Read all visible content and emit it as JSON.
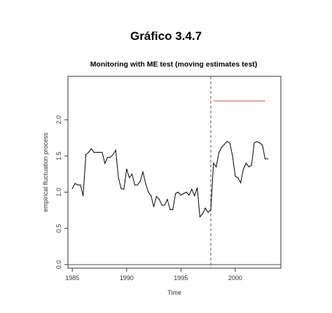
{
  "page": {
    "title": "Gráfico 3.4.7"
  },
  "chart_data": {
    "type": "line",
    "title": "Monitoring with ME test (moving estimates test)",
    "xlabel": "Time",
    "ylabel": "empirical fluctuation process",
    "xlim": [
      1984.6,
      2004.2
    ],
    "ylim": [
      -0.05,
      2.6
    ],
    "x_ticks": [
      1985,
      1990,
      1995,
      2000
    ],
    "x_tick_labels": [
      "1985",
      "1990",
      "1995",
      "2000"
    ],
    "y_ticks": [
      0.0,
      0.5,
      1.0,
      1.5,
      2.0
    ],
    "y_tick_labels": [
      "0.0",
      "0.5",
      "1.0",
      "1.5",
      "2.0"
    ],
    "grid": false,
    "reference_lines": {
      "horizontal_y": 0.0,
      "vertical_dashed_x": 1997.75,
      "boundary": {
        "x_start": 1998.0,
        "x_end": 2002.75,
        "y": 2.26,
        "color": "#e07070"
      }
    },
    "colors": {
      "series": "#000000",
      "boundary": "#e07070",
      "axis": "#333333"
    },
    "series": [
      {
        "name": "",
        "x": [
          1985.0,
          1985.25,
          1985.5,
          1985.75,
          1986.0,
          1986.25,
          1986.5,
          1986.75,
          1987.0,
          1987.25,
          1987.5,
          1987.75,
          1988.0,
          1988.25,
          1988.5,
          1988.75,
          1989.0,
          1989.25,
          1989.5,
          1989.75,
          1990.0,
          1990.25,
          1990.5,
          1990.75,
          1991.0,
          1991.25,
          1991.5,
          1991.75,
          1992.0,
          1992.25,
          1992.5,
          1992.75,
          1993.0,
          1993.25,
          1993.5,
          1993.75,
          1994.0,
          1994.25,
          1994.5,
          1994.75,
          1995.0,
          1995.25,
          1995.5,
          1995.75,
          1996.0,
          1996.25,
          1996.5,
          1996.75,
          1997.0,
          1997.25,
          1997.5,
          1997.75,
          1998.0,
          1998.25,
          1998.5,
          1998.75,
          1999.0,
          1999.25,
          1999.5,
          1999.75,
          2000.0,
          2000.25,
          2000.5,
          2000.75,
          2001.0,
          2001.25,
          2001.5,
          2001.75,
          2002.0,
          2002.25,
          2002.5,
          2002.75,
          2003.0
        ],
        "y": [
          1.05,
          1.12,
          1.1,
          1.1,
          0.95,
          1.52,
          1.55,
          1.6,
          1.55,
          1.55,
          1.55,
          1.55,
          1.4,
          1.48,
          1.48,
          1.52,
          1.58,
          1.2,
          1.05,
          1.04,
          1.32,
          1.2,
          1.25,
          1.1,
          1.1,
          1.15,
          1.28,
          1.12,
          1.0,
          0.95,
          0.8,
          0.94,
          0.9,
          0.82,
          0.82,
          0.9,
          0.76,
          0.76,
          0.98,
          1.0,
          0.96,
          0.98,
          1.0,
          0.96,
          1.04,
          0.95,
          1.06,
          0.66,
          0.7,
          0.78,
          0.72,
          0.76,
          1.4,
          1.35,
          1.55,
          1.62,
          1.66,
          1.7,
          1.68,
          1.5,
          1.22,
          1.2,
          1.13,
          1.32,
          1.4,
          1.35,
          1.37,
          1.68,
          1.7,
          1.68,
          1.65,
          1.46,
          1.46
        ]
      }
    ]
  }
}
